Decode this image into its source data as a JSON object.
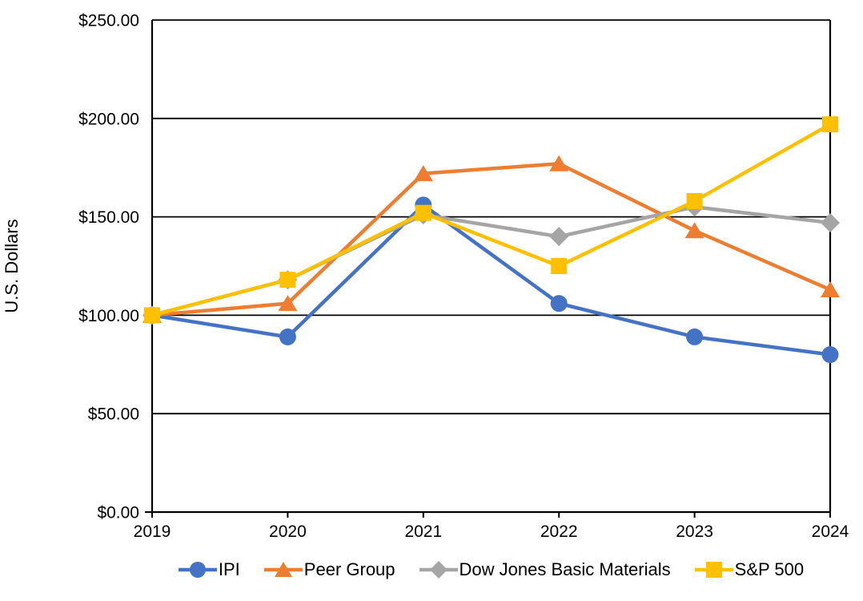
{
  "chart_data": {
    "type": "line",
    "title": "",
    "ylabel": "U.S. Dollars",
    "xlabel": "",
    "ylim": [
      0,
      250
    ],
    "ytick_step": 50,
    "y_tick_labels": [
      "$0.00",
      "$50.00",
      "$100.00",
      "$150.00",
      "$200.00",
      "$250.00"
    ],
    "x": [
      2019,
      2020,
      2021,
      2022,
      2023,
      2024
    ],
    "x_tick_labels": [
      "2019",
      "2020",
      "2021",
      "2022",
      "2023",
      "2024"
    ],
    "grid": "horizontal",
    "legend_position": "bottom",
    "series": [
      {
        "name": "IPI",
        "color": "#4472C4",
        "marker": "circle",
        "values": [
          100,
          89,
          156,
          106,
          89,
          80
        ]
      },
      {
        "name": "Peer Group",
        "color": "#ED7D31",
        "marker": "triangle",
        "values": [
          100,
          106,
          172,
          177,
          143,
          113
        ]
      },
      {
        "name": "Dow Jones Basic Materials",
        "color": "#A5A5A5",
        "marker": "diamond",
        "values": [
          100,
          118,
          151,
          140,
          155,
          147
        ]
      },
      {
        "name": "S&P 500",
        "color": "#FFC000",
        "marker": "square",
        "values": [
          100,
          118,
          152,
          125,
          158,
          197
        ]
      }
    ],
    "axis_color": "#000000"
  }
}
